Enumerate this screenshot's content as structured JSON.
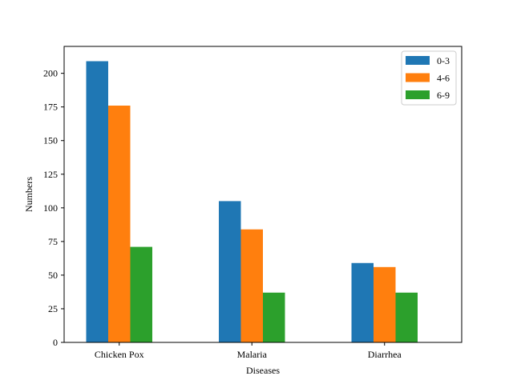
{
  "chart_data": {
    "type": "bar",
    "title": "",
    "xlabel": "Diseases",
    "ylabel": "Numbers",
    "categories": [
      "Chicken Pox",
      "Malaria",
      "Diarrhea"
    ],
    "series": [
      {
        "name": "0-3",
        "color": "#1f77b4",
        "values": [
          209,
          105,
          59
        ]
      },
      {
        "name": "4-6",
        "color": "#ff7f0e",
        "values": [
          176,
          84,
          56
        ]
      },
      {
        "name": "6-9",
        "color": "#2ca02c",
        "values": [
          71,
          37,
          37
        ]
      }
    ],
    "ylim": [
      0,
      220
    ],
    "yticks": [
      0,
      25,
      50,
      75,
      100,
      125,
      150,
      175,
      200
    ],
    "grid": false,
    "legend_position": "top-right"
  }
}
